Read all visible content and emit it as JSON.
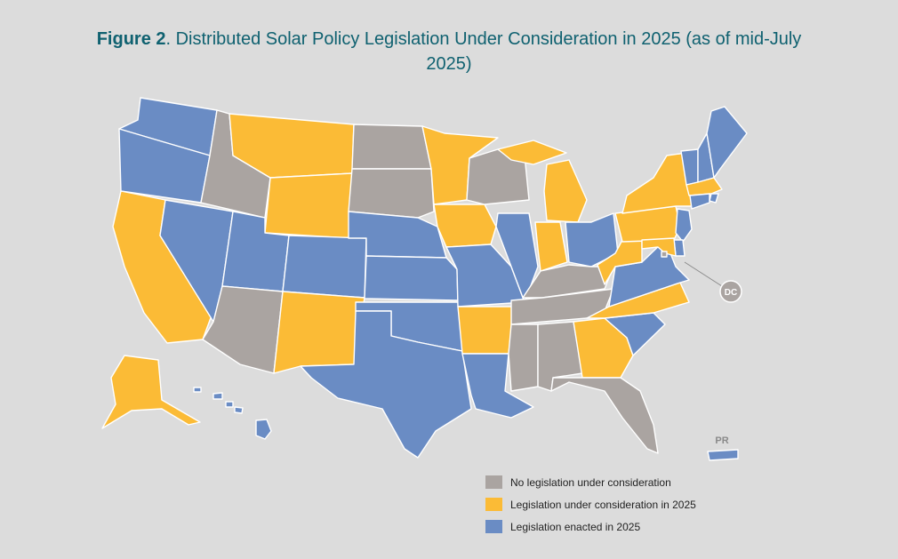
{
  "title": {
    "prefix": "Figure 2",
    "text": ". Distributed Solar Policy Legislation Under Consideration in 2025 (as of mid-July 2025)"
  },
  "colors": {
    "none": "#aaa4a1",
    "consideration": "#fbbb36",
    "enacted": "#6a8cc4",
    "outline": "#ffffff",
    "title": "#0f6170"
  },
  "legend": {
    "none": "No legislation under consideration",
    "consideration": "Legislation under consideration in 2025",
    "enacted": "Legislation enacted in 2025"
  },
  "labels": {
    "dc": "DC",
    "pr": "PR"
  },
  "map_data": {
    "states": [
      {
        "code": "WA",
        "status": "enacted"
      },
      {
        "code": "OR",
        "status": "enacted"
      },
      {
        "code": "CA",
        "status": "consideration"
      },
      {
        "code": "NV",
        "status": "enacted"
      },
      {
        "code": "ID",
        "status": "none"
      },
      {
        "code": "MT",
        "status": "consideration"
      },
      {
        "code": "WY",
        "status": "consideration"
      },
      {
        "code": "UT",
        "status": "enacted"
      },
      {
        "code": "AZ",
        "status": "none"
      },
      {
        "code": "CO",
        "status": "enacted"
      },
      {
        "code": "NM",
        "status": "consideration"
      },
      {
        "code": "ND",
        "status": "none"
      },
      {
        "code": "SD",
        "status": "none"
      },
      {
        "code": "NE",
        "status": "enacted"
      },
      {
        "code": "KS",
        "status": "enacted"
      },
      {
        "code": "OK",
        "status": "enacted"
      },
      {
        "code": "TX",
        "status": "enacted"
      },
      {
        "code": "MN",
        "status": "consideration"
      },
      {
        "code": "IA",
        "status": "consideration"
      },
      {
        "code": "MO",
        "status": "enacted"
      },
      {
        "code": "AR",
        "status": "consideration"
      },
      {
        "code": "LA",
        "status": "enacted"
      },
      {
        "code": "WI",
        "status": "none"
      },
      {
        "code": "IL",
        "status": "enacted"
      },
      {
        "code": "MI",
        "status": "consideration"
      },
      {
        "code": "IN",
        "status": "consideration"
      },
      {
        "code": "OH",
        "status": "enacted"
      },
      {
        "code": "KY",
        "status": "none"
      },
      {
        "code": "TN",
        "status": "none"
      },
      {
        "code": "MS",
        "status": "none"
      },
      {
        "code": "AL",
        "status": "none"
      },
      {
        "code": "GA",
        "status": "consideration"
      },
      {
        "code": "FL",
        "status": "none"
      },
      {
        "code": "SC",
        "status": "enacted"
      },
      {
        "code": "NC",
        "status": "consideration"
      },
      {
        "code": "VA",
        "status": "enacted"
      },
      {
        "code": "WV",
        "status": "consideration"
      },
      {
        "code": "PA",
        "status": "consideration"
      },
      {
        "code": "NY",
        "status": "consideration"
      },
      {
        "code": "VT",
        "status": "enacted"
      },
      {
        "code": "NH",
        "status": "enacted"
      },
      {
        "code": "ME",
        "status": "enacted"
      },
      {
        "code": "MA",
        "status": "consideration"
      },
      {
        "code": "RI",
        "status": "enacted"
      },
      {
        "code": "CT",
        "status": "enacted"
      },
      {
        "code": "NJ",
        "status": "enacted"
      },
      {
        "code": "DE",
        "status": "enacted"
      },
      {
        "code": "MD",
        "status": "consideration"
      },
      {
        "code": "DC",
        "status": "none"
      },
      {
        "code": "AK",
        "status": "consideration"
      },
      {
        "code": "HI",
        "status": "enacted"
      },
      {
        "code": "PR",
        "status": "enacted"
      }
    ]
  }
}
